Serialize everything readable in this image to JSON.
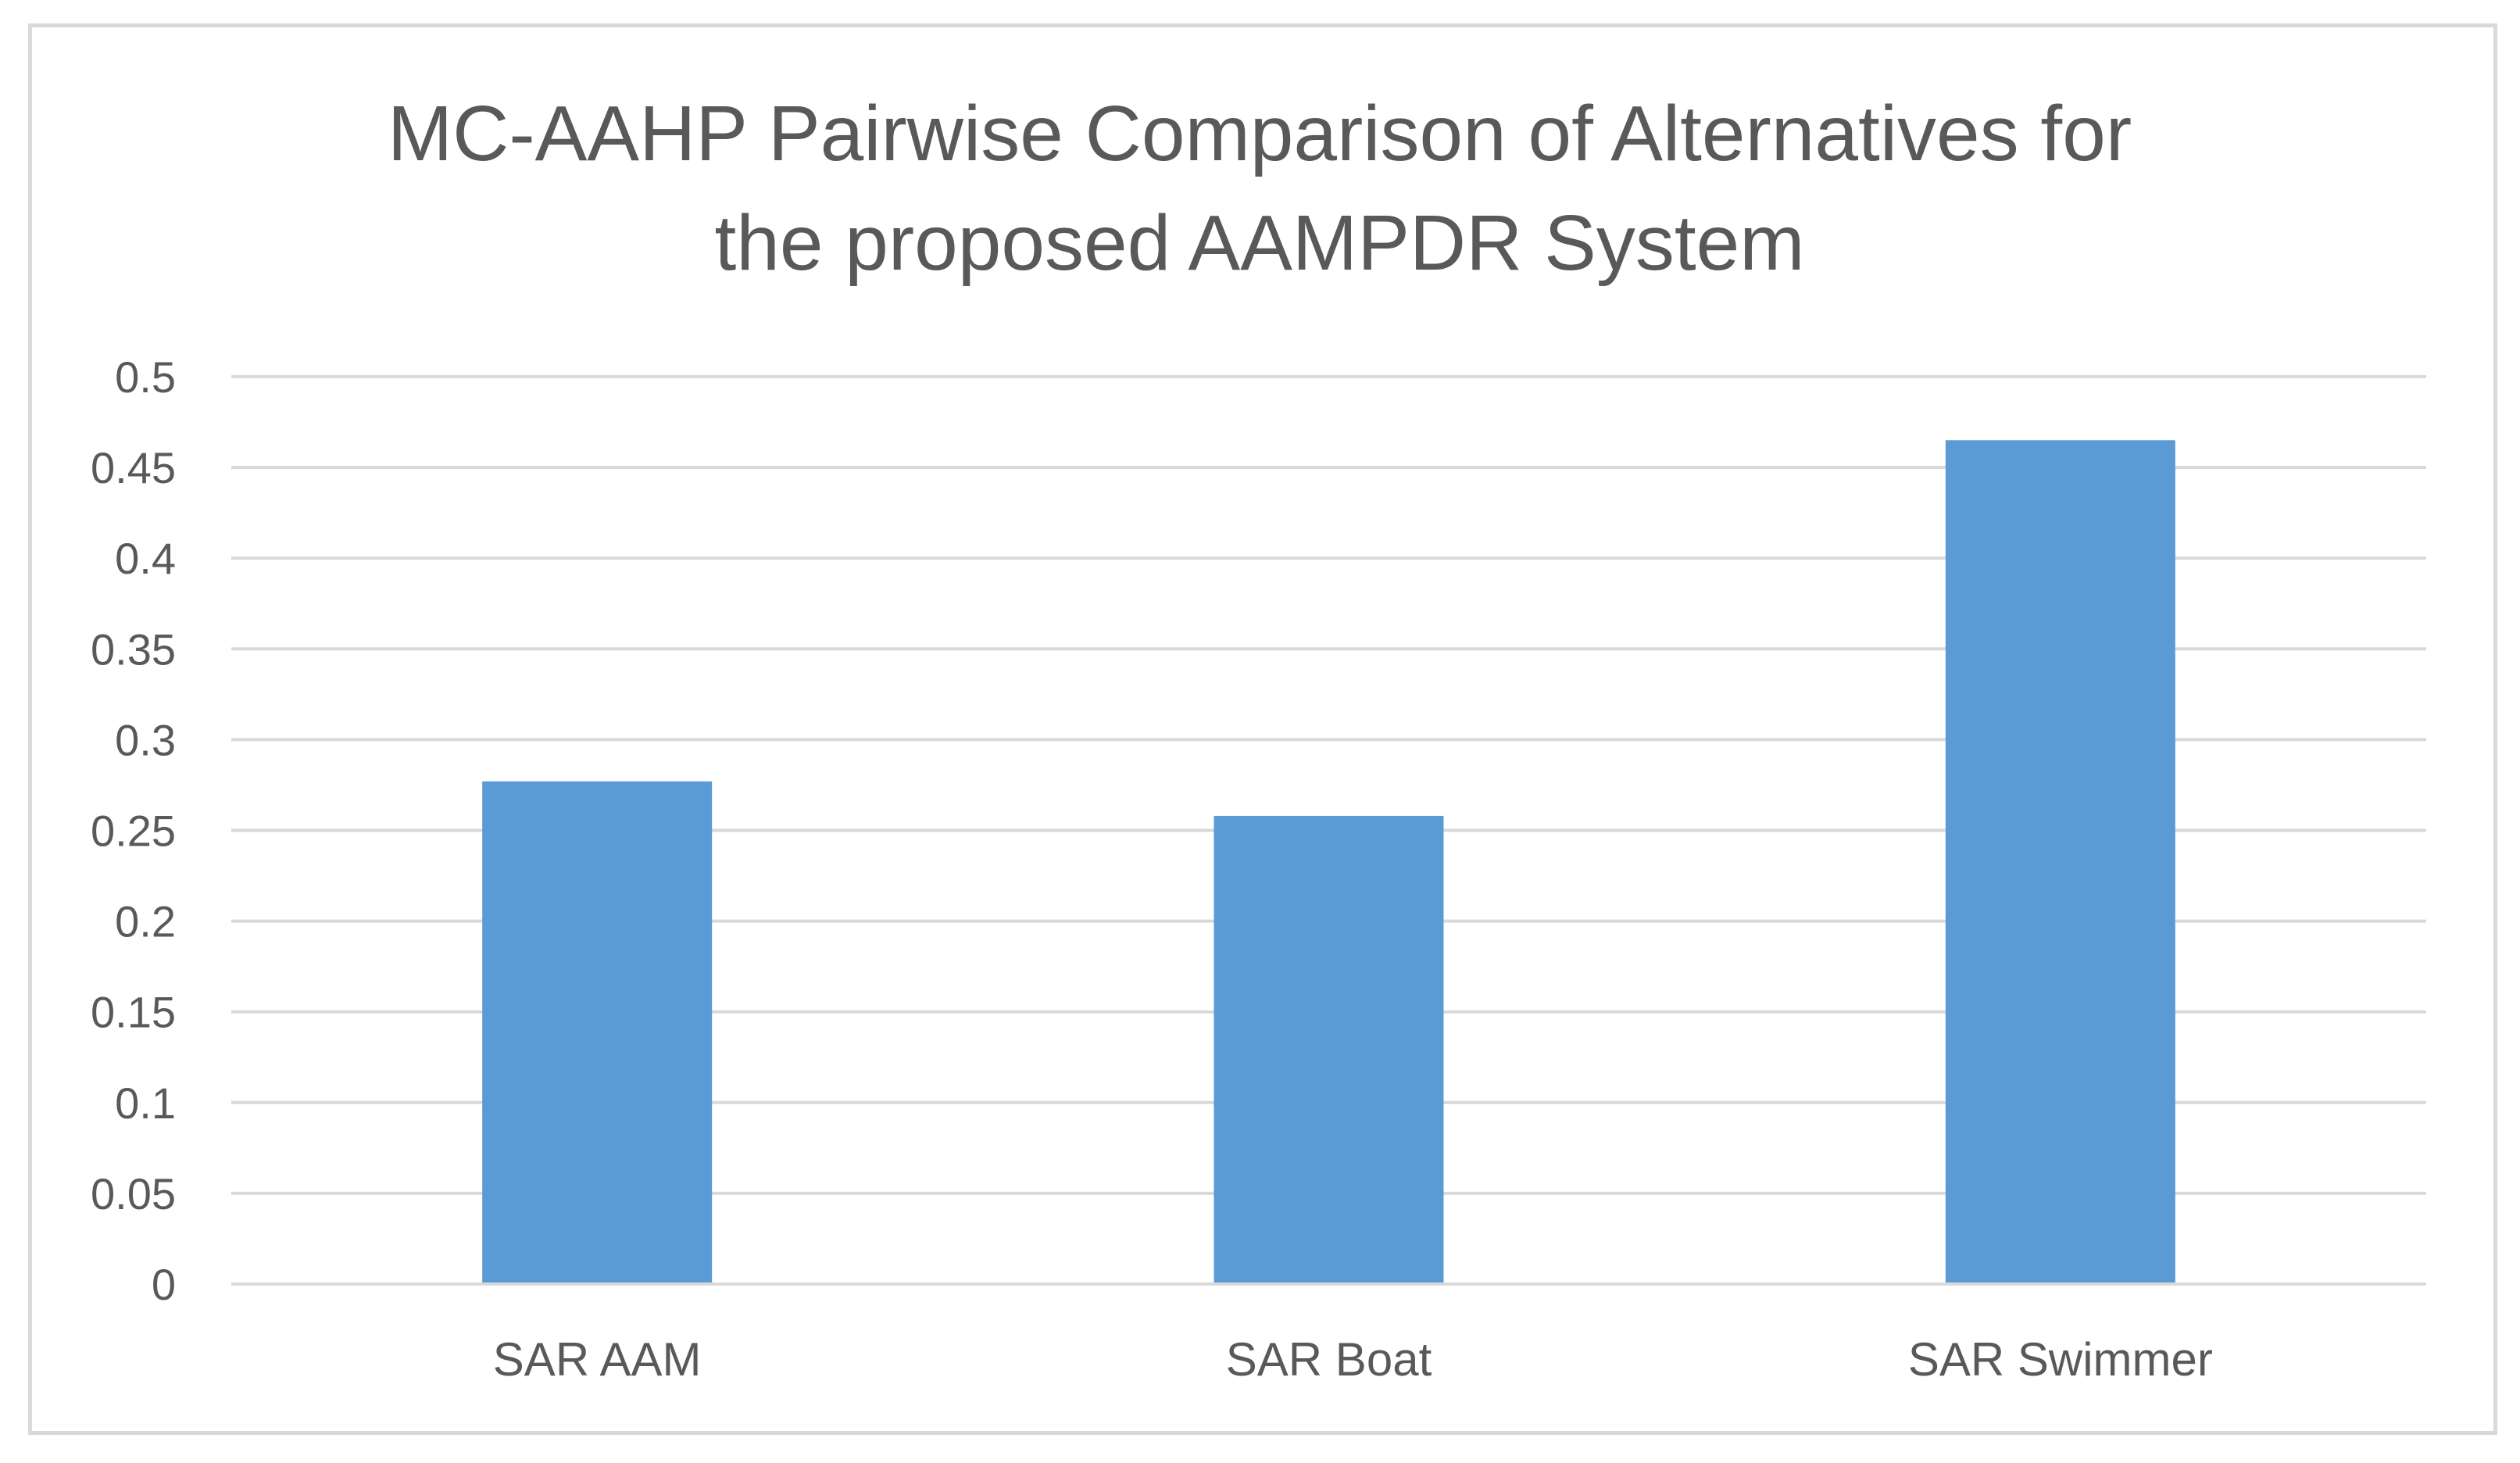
{
  "chart_data": {
    "type": "bar",
    "title_lines": [
      "MC-AAHP Pairwise Comparison of Alternatives for",
      "the proposed AAMPDR System"
    ],
    "xlabel": "",
    "ylabel": "",
    "categories": [
      "SAR AAM",
      "SAR Boat",
      "SAR Swimmer"
    ],
    "series": [
      {
        "values": [
          0.277,
          0.258,
          0.465
        ]
      }
    ],
    "ylim": [
      0,
      0.5
    ],
    "yticks": [
      "0",
      "0.05",
      "0.1",
      "0.15",
      "0.2",
      "0.25",
      "0.3",
      "0.35",
      "0.4",
      "0.45",
      "0.5"
    ],
    "grid": true,
    "legend": "none",
    "colors": {
      "bar": "#5b9bd5",
      "grid": "#d9d9d9",
      "text": "#595959",
      "border": "#d9d9d9"
    }
  }
}
